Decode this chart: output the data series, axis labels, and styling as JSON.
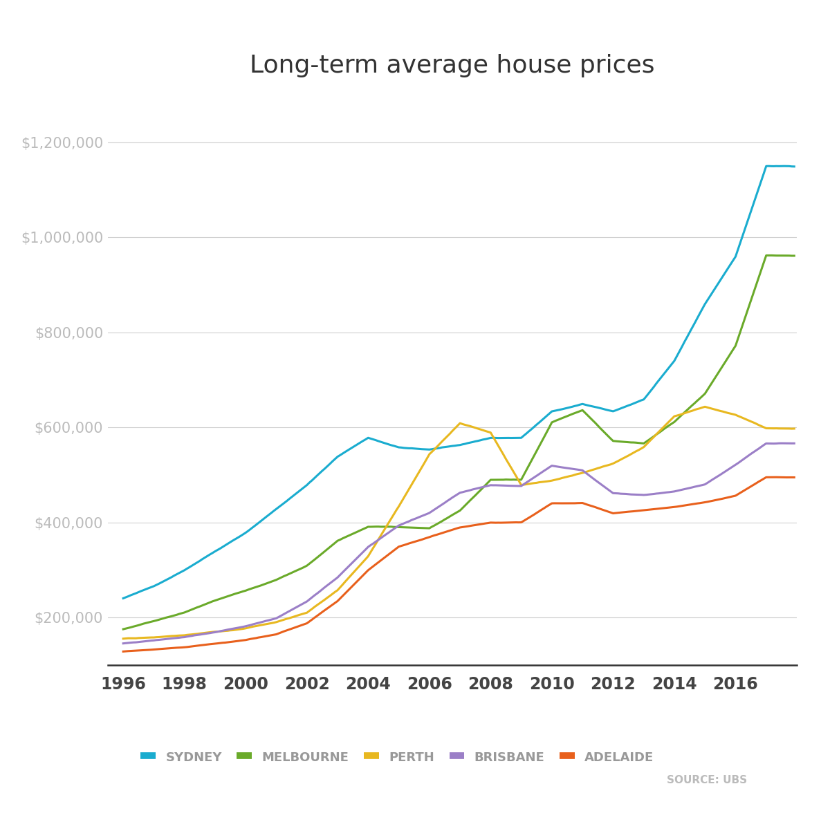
{
  "title": "Long-term average house prices",
  "title_fontsize": 26,
  "source_text": "SOURCE: UBS",
  "colors": {
    "sydney": "#1aaccf",
    "melbourne": "#6aaa2a",
    "perth": "#e8b820",
    "brisbane": "#9b7fc7",
    "adelaide": "#e8601c"
  },
  "legend_labels": [
    "SYDNEY",
    "MELBOURNE",
    "PERTH",
    "BRISBANE",
    "ADELAIDE"
  ],
  "ytick_values": [
    200000,
    400000,
    600000,
    800000,
    1000000,
    1200000
  ],
  "xtick_years": [
    1996,
    1998,
    2000,
    2002,
    2004,
    2006,
    2008,
    2010,
    2012,
    2014,
    2016
  ],
  "ylim_bottom": 100000,
  "ylim_top": 1290000,
  "xlim_start": 1995.5,
  "xlim_end": 2018.0,
  "background_color": "#ffffff",
  "grid_color": "#d0d0d0",
  "tick_label_color": "#bbbbbb",
  "xtick_label_color": "#444444",
  "spine_color": "#333333",
  "linewidth": 2.2
}
